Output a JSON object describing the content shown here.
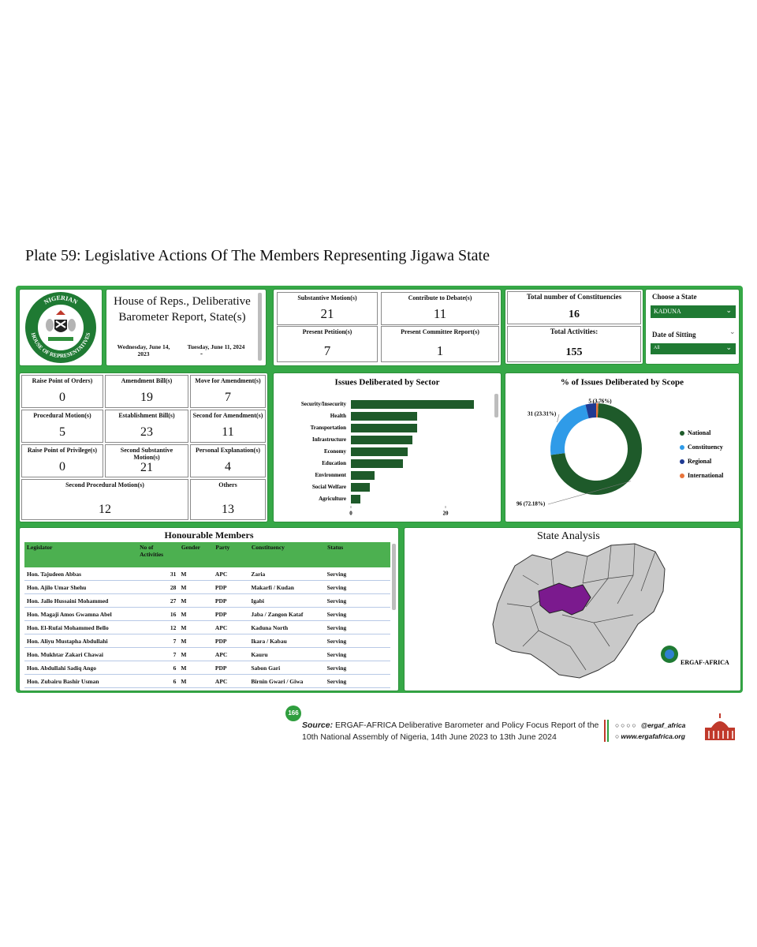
{
  "plate_title": "Plate 59: Legislative Actions Of The Members Representing Jigawa State",
  "logo": {
    "top_text": "NIGERIAN",
    "bottom_text": "HOUSE OF REPRESENTATIVES"
  },
  "report": {
    "title": "House of Reps., Deliberative Barometer Report, State(s)",
    "start_date": "Wednesday, June 14, 2023",
    "date_separator": "-",
    "end_date": "Tuesday, June 11, 2024"
  },
  "motions": [
    {
      "label": "Substantive Motion(s)",
      "value": 21
    },
    {
      "label": "Contribute to Debate(s)",
      "value": 11
    },
    {
      "label": "Present Petition(s)",
      "value": 7
    },
    {
      "label": "Present Committee Report(s)",
      "value": 1
    }
  ],
  "totals": {
    "constituencies_label": "Total number of Constituencies",
    "constituencies": 16,
    "activities_label": "Total Activities:",
    "activities": 155
  },
  "filters": {
    "state_label": "Choose a State",
    "state": "KADUNA",
    "date_label": "Date of Sitting",
    "date": "All"
  },
  "actions": [
    {
      "label": "Raise Point of Orders)",
      "value": 0
    },
    {
      "label": "Amendment Bill(s)",
      "value": 19
    },
    {
      "label": "Move for Amendment(s)",
      "value": 7
    },
    {
      "label": "Procedural Motion(s)",
      "value": 5
    },
    {
      "label": "Establishment Bill(s)",
      "value": 23
    },
    {
      "label": "Second for Amendment(s)",
      "value": 11
    },
    {
      "label": "Raise Point of Privilege(s)",
      "value": 0
    },
    {
      "label": "Second Substantive Motion(s)",
      "value": 21
    },
    {
      "label": "Personal Explanation(s)",
      "value": 4
    },
    {
      "label": "Second Procedural Motion(s)",
      "value": 12
    },
    {
      "label": "Others",
      "value": 13
    }
  ],
  "chart_data": [
    {
      "type": "bar",
      "title": "Issues Deliberated by Sector",
      "categories": [
        "Security/Insecurity",
        "Health",
        "Transportation",
        "Infrastructure",
        "Economy",
        "Education",
        "Environment",
        "Social Welfare",
        "Agriculture"
      ],
      "values": [
        26,
        14,
        14,
        13,
        12,
        11,
        5,
        4,
        2
      ],
      "color": "#1e5a2a",
      "xlim": [
        0,
        28
      ],
      "xticks": [
        0,
        20
      ]
    },
    {
      "type": "donut",
      "title": "% of Issues Deliberated by Scope",
      "categories": [
        "National",
        "Constituency",
        "Regional",
        "International"
      ],
      "values": [
        96,
        31,
        5,
        1
      ],
      "value_labels": [
        "96 (72.18%)",
        "31 (23.31%)",
        "5 (3.76%)",
        null
      ],
      "colors": [
        "#1e5a2a",
        "#2f9be8",
        "#1f3a93",
        "#e8743b"
      ],
      "legend": "right"
    }
  ],
  "members": {
    "title": "Honourable Members",
    "columns": [
      "Legislator",
      "No of Activities",
      "Gender",
      "Party",
      "Constituency",
      "Status"
    ],
    "rows": [
      [
        "Hon. Tajudeen Abbas",
        31,
        "M",
        "APC",
        "Zaria",
        "Serving"
      ],
      [
        "Hon. Ajilo Umar Shehu",
        28,
        "M",
        "PDP",
        "Makarfi / Kudan",
        "Serving"
      ],
      [
        "Hon. Jallo Hussaini Mohammed",
        27,
        "M",
        "PDP",
        "Igabi",
        "Serving"
      ],
      [
        "Hon. Magaji Amos Gwamna Abel",
        16,
        "M",
        "PDP",
        "Jaba / Zangon Kataf",
        "Serving"
      ],
      [
        "Hon. El-Rufai Mohammed Bello",
        12,
        "M",
        "APC",
        "Kaduna North",
        "Serving"
      ],
      [
        "Hon. Aliyu Mustapha Abdullahi",
        7,
        "M",
        "PDP",
        "Ikara / Kabau",
        "Serving"
      ],
      [
        "Hon. Mukhtar Zakari Chawai",
        7,
        "M",
        "APC",
        "Kauru",
        "Serving"
      ],
      [
        "Hon. Abdullahi Sadiq Ango",
        6,
        "M",
        "PDP",
        "Sabon Gari",
        "Serving"
      ],
      [
        "Hon. Zubairu Bashir Usman",
        6,
        "M",
        "APC",
        "Birnin Gwari / Giwa",
        "Serving"
      ]
    ]
  },
  "map": {
    "title": "State Analysis",
    "logo_text": "ERGAF-AFRICA"
  },
  "footer": {
    "page": 166,
    "source_label": "Source:",
    "source": "ERGAF-AFRICA Deliberative Barometer and Policy Focus Report of the 10th National Assembly of Nigeria, 14th June 2023 to 13th June 2024",
    "handle": "@ergaf_africa",
    "website": "www.ergafafrica.org"
  }
}
